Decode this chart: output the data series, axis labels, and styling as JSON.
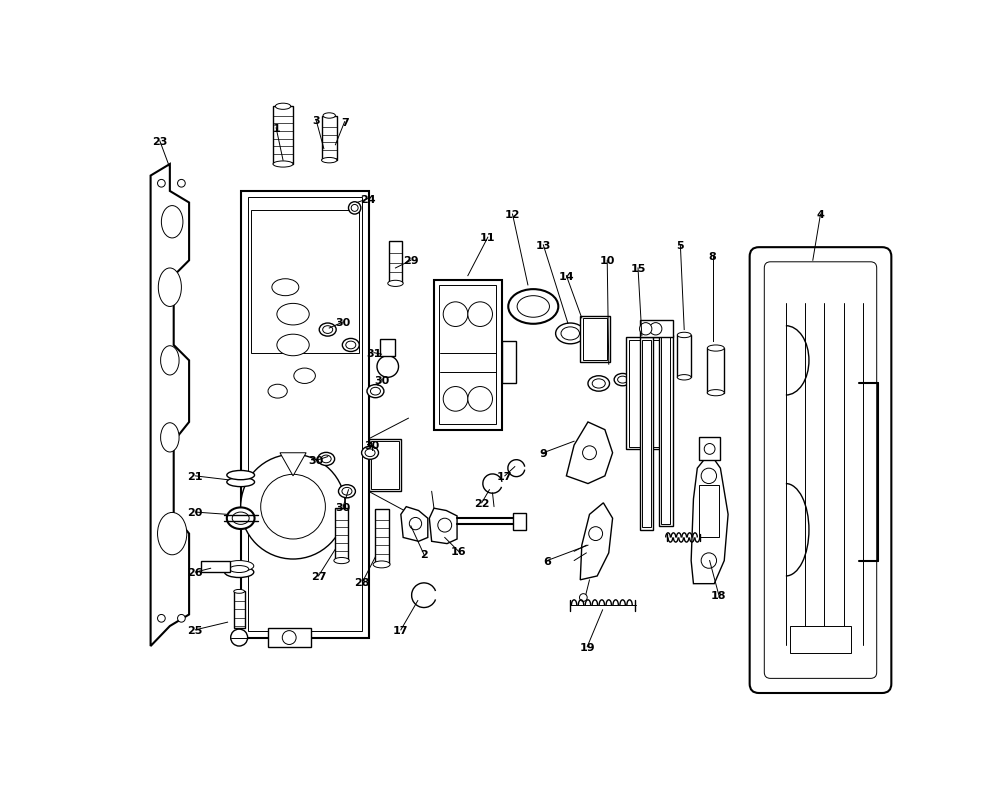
{
  "bg_color": "#ffffff",
  "fig_width": 10.0,
  "fig_height": 8.04,
  "dpi": 100
}
